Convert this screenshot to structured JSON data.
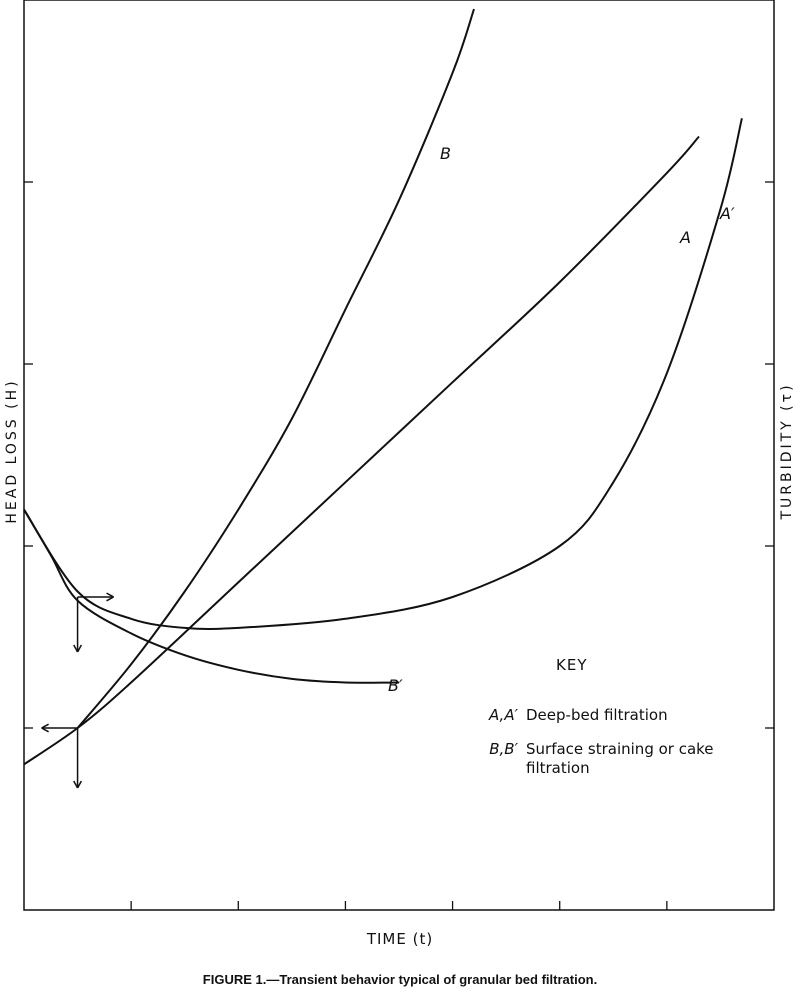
{
  "chart_data": {
    "type": "line",
    "caption": "FIGURE 1.—Transient behavior typical of granular bed filtration.",
    "xlabel": "TIME (t)",
    "ylabel_left": "HEAD LOSS (H)",
    "ylabel_right": "TURBIDITY (τ)",
    "xlim": [
      0,
      7
    ],
    "ylim": [
      0,
      5
    ],
    "series": [
      {
        "name": "A",
        "axis": "left",
        "x": [
          0.0,
          0.5,
          1.0,
          2.0,
          3.0,
          4.0,
          5.0,
          6.0,
          6.3
        ],
        "y": [
          0.8,
          1.0,
          1.25,
          1.8,
          2.35,
          2.9,
          3.45,
          4.05,
          4.25
        ]
      },
      {
        "name": "B",
        "axis": "left",
        "x": [
          0.5,
          1.0,
          1.5,
          2.0,
          2.5,
          3.0,
          3.5,
          4.0,
          4.2
        ],
        "y": [
          1.0,
          1.35,
          1.75,
          2.2,
          2.7,
          3.3,
          3.9,
          4.6,
          4.95
        ]
      },
      {
        "name": "A′",
        "axis": "right",
        "x": [
          0.0,
          0.5,
          1.0,
          1.5,
          2.0,
          3.0,
          4.0,
          5.0,
          5.5,
          6.0,
          6.5,
          6.7
        ],
        "y": [
          2.2,
          1.75,
          1.6,
          1.55,
          1.55,
          1.6,
          1.72,
          2.0,
          2.35,
          2.95,
          3.85,
          4.35
        ]
      },
      {
        "name": "B′",
        "axis": "right",
        "x": [
          0.0,
          0.25,
          0.5,
          1.0,
          1.5,
          2.0,
          2.5,
          3.0,
          3.5
        ],
        "y": [
          2.2,
          1.95,
          1.7,
          1.52,
          1.4,
          1.32,
          1.27,
          1.25,
          1.25
        ]
      }
    ],
    "key": {
      "title": "KEY",
      "entries": [
        {
          "symbol": "A,A′",
          "label": "Deep-bed filtration"
        },
        {
          "symbol": "B,B′",
          "label": "Surface straining or cake filtration"
        }
      ]
    },
    "grid": false
  }
}
